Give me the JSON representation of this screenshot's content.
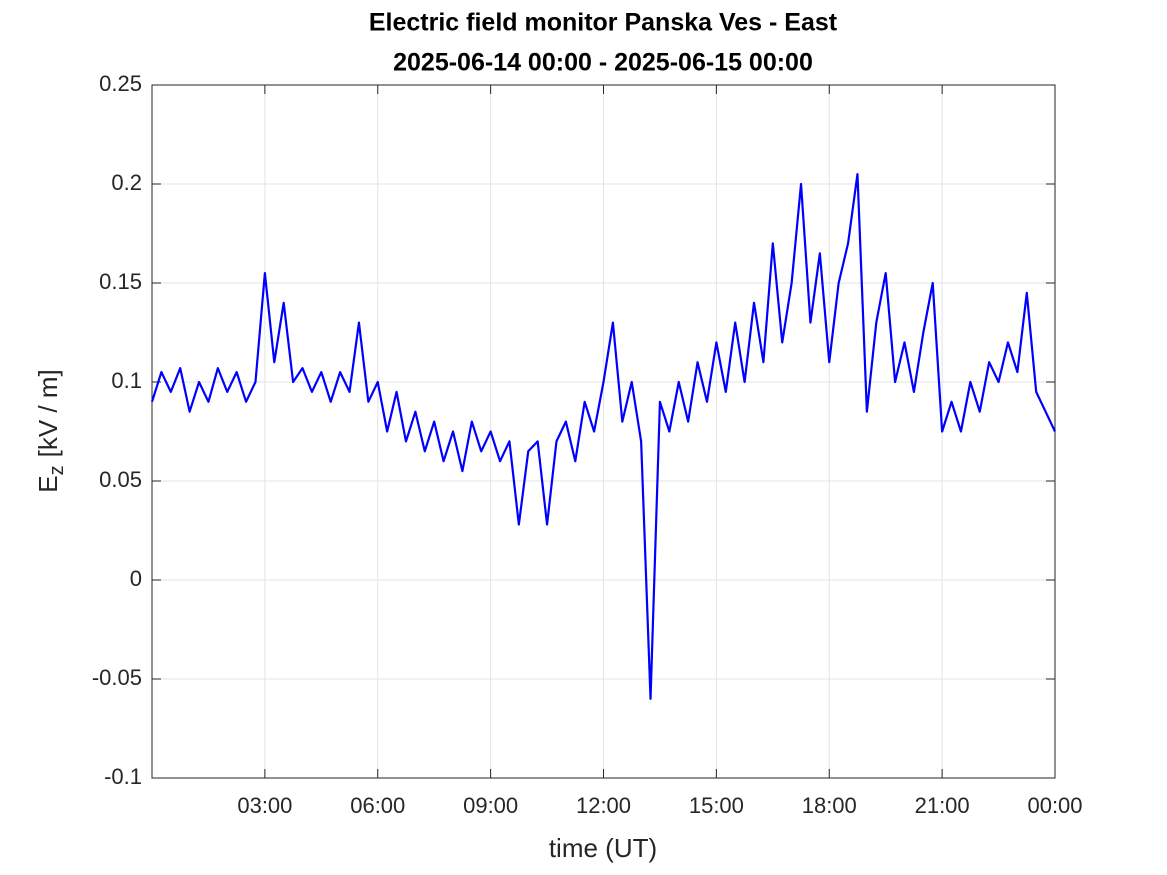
{
  "chart_data": {
    "type": "line",
    "title": [
      "Electric field monitor Panska Ves - East",
      "2025-06-14 00:00 - 2025-06-15 00:00"
    ],
    "xlabel": "time (UT)",
    "ylabel": {
      "base": "E",
      "sub": "z",
      "unit": "[kV / m]"
    },
    "x": [
      0,
      0.25,
      0.5,
      0.75,
      1,
      1.25,
      1.5,
      1.75,
      2,
      2.25,
      2.5,
      2.75,
      3,
      3.25,
      3.5,
      3.75,
      4,
      4.25,
      4.5,
      4.75,
      5,
      5.25,
      5.5,
      5.75,
      6,
      6.25,
      6.5,
      6.75,
      7,
      7.25,
      7.5,
      7.75,
      8,
      8.25,
      8.5,
      8.75,
      9,
      9.25,
      9.5,
      9.75,
      10,
      10.25,
      10.5,
      10.75,
      11,
      11.25,
      11.5,
      11.75,
      12,
      12.25,
      12.5,
      12.75,
      13,
      13.25,
      13.5,
      13.75,
      14,
      14.25,
      14.5,
      14.75,
      15,
      15.25,
      15.5,
      15.75,
      16,
      16.25,
      16.5,
      16.75,
      17,
      17.25,
      17.5,
      17.75,
      18,
      18.25,
      18.5,
      18.75,
      19,
      19.25,
      19.5,
      19.75,
      20,
      20.25,
      20.5,
      20.75,
      21,
      21.25,
      21.5,
      21.75,
      22,
      22.25,
      22.5,
      22.75,
      23,
      23.25,
      23.5,
      23.75,
      24
    ],
    "series": [
      {
        "color": "#0000ff",
        "values": [
          0.09,
          0.105,
          0.095,
          0.107,
          0.085,
          0.1,
          0.09,
          0.107,
          0.095,
          0.105,
          0.09,
          0.1,
          0.155,
          0.11,
          0.14,
          0.1,
          0.107,
          0.095,
          0.105,
          0.09,
          0.105,
          0.095,
          0.13,
          0.09,
          0.1,
          0.075,
          0.095,
          0.07,
          0.085,
          0.065,
          0.08,
          0.06,
          0.075,
          0.055,
          0.08,
          0.065,
          0.075,
          0.06,
          0.07,
          0.028,
          0.065,
          0.07,
          0.028,
          0.07,
          0.08,
          0.06,
          0.09,
          0.075,
          0.1,
          0.13,
          0.08,
          0.1,
          0.07,
          -0.06,
          0.09,
          0.075,
          0.1,
          0.08,
          0.11,
          0.09,
          0.12,
          0.095,
          0.13,
          0.1,
          0.14,
          0.11,
          0.17,
          0.12,
          0.15,
          0.2,
          0.13,
          0.165,
          0.11,
          0.15,
          0.17,
          0.205,
          0.085,
          0.13,
          0.155,
          0.1,
          0.12,
          0.095,
          0.125,
          0.15,
          0.075,
          0.09,
          0.075,
          0.1,
          0.085,
          0.11,
          0.1,
          0.12,
          0.105,
          0.145,
          0.095,
          0.085,
          0.075
        ]
      }
    ],
    "xlim": [
      0,
      24
    ],
    "xticks": [
      {
        "value": 3,
        "label": "03:00"
      },
      {
        "value": 6,
        "label": "06:00"
      },
      {
        "value": 9,
        "label": "09:00"
      },
      {
        "value": 12,
        "label": "12:00"
      },
      {
        "value": 15,
        "label": "15:00"
      },
      {
        "value": 18,
        "label": "18:00"
      },
      {
        "value": 21,
        "label": "21:00"
      },
      {
        "value": 24,
        "label": "00:00"
      }
    ],
    "ylim": [
      -0.1,
      0.25
    ],
    "yticks": [
      -0.1,
      -0.05,
      0,
      0.05,
      0.1,
      0.15,
      0.2,
      0.25
    ],
    "grid": true
  }
}
